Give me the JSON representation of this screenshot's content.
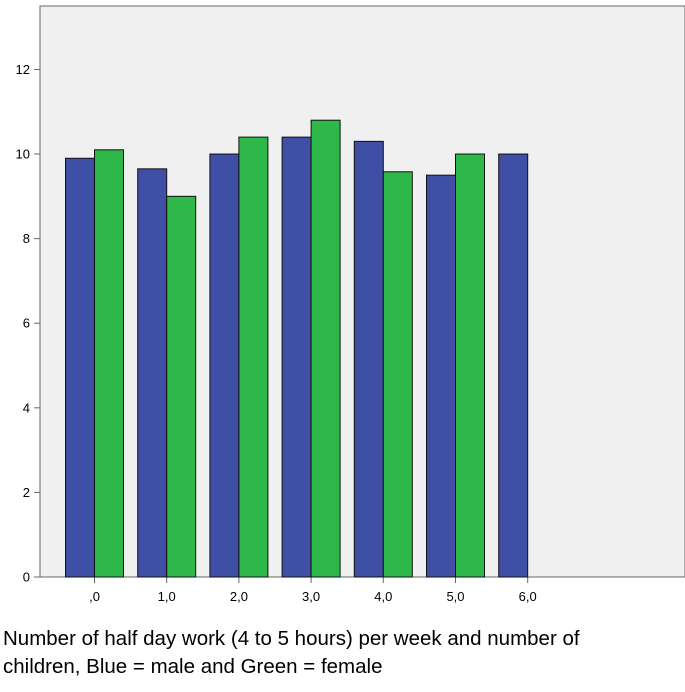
{
  "chart_data": {
    "type": "bar",
    "title": "",
    "xlabel": "",
    "ylabel": "",
    "categories": [
      ",0",
      "1,0",
      "2,0",
      "3,0",
      "4,0",
      "5,0",
      "6,0"
    ],
    "series": [
      {
        "values": [
          9.9,
          9.65,
          10.0,
          10.4,
          10.3,
          9.5,
          10.0
        ]
      },
      {
        "values": [
          10.1,
          9.0,
          10.4,
          10.8,
          9.58,
          10.0,
          null
        ]
      }
    ],
    "ylim": [
      0,
      13.5
    ],
    "yticks": [
      0,
      2,
      4,
      6,
      8,
      10,
      12
    ],
    "grid": false,
    "legend": "none"
  },
  "colors": {
    "plot_background": "#f0f0f0",
    "male": "#3f4fa6",
    "female": "#2fb84a",
    "bar_outline": "#111111",
    "axis": "#666666"
  },
  "caption": {
    "line1": "Number of half day work (4 to 5 hours) per week and number of",
    "line2": "children, Blue = male and Green = female"
  }
}
